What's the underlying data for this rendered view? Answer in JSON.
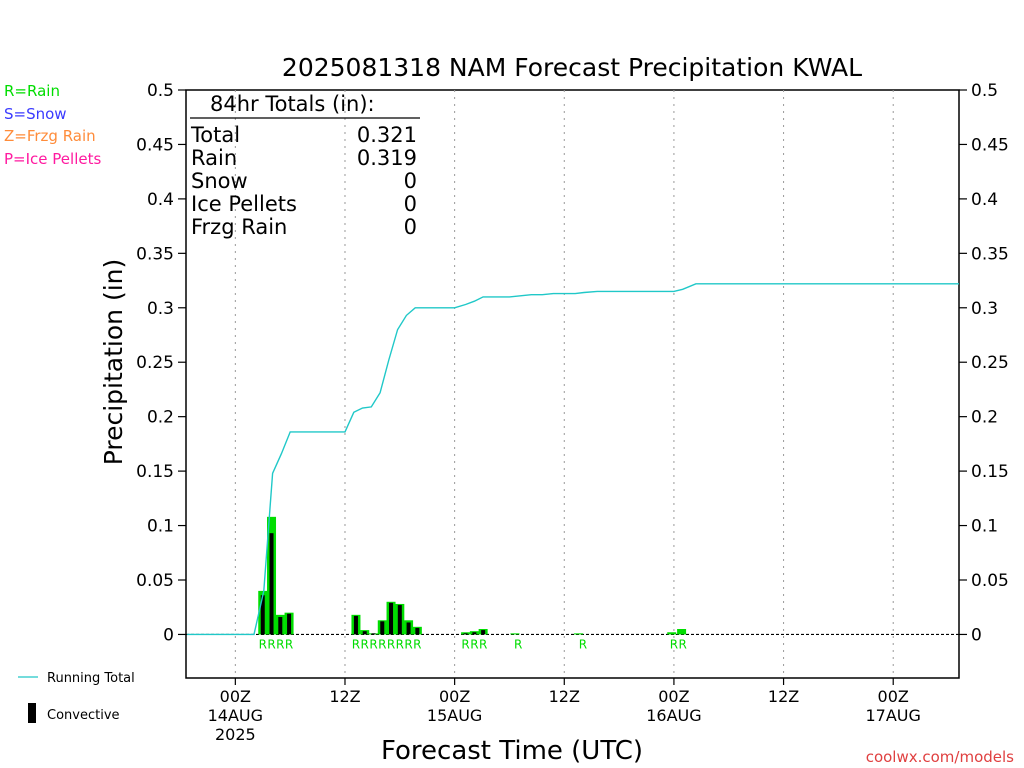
{
  "chart_data": {
    "type": "bar",
    "title": "2025081318 NAM Forecast Precipitation KWAL",
    "xlabel": "Forecast Time (UTC)",
    "ylabel": "Precipitation (in)",
    "ylim": [
      -0.04,
      0.5
    ],
    "xlim": [
      -4.5,
      66
    ],
    "y_ticks": [
      "0",
      "0.05",
      "0.1",
      "0.15",
      "0.2",
      "0.25",
      "0.3",
      "0.35",
      "0.4",
      "0.45",
      "0.5"
    ],
    "y_tick_values": [
      0,
      0.05,
      0.1,
      0.15,
      0.2,
      0.25,
      0.3,
      0.35,
      0.4,
      0.45,
      0.5
    ],
    "x_ticks": [
      {
        "hour": 0,
        "line1": "00Z",
        "line2": "14AUG",
        "line3": "2025"
      },
      {
        "hour": 10,
        "line1": "12Z",
        "line2": "",
        "line3": ""
      },
      {
        "hour": 20,
        "line1": "00Z",
        "line2": "15AUG",
        "line3": ""
      },
      {
        "hour": 30,
        "line1": "12Z",
        "line2": "",
        "line3": ""
      },
      {
        "hour": 40,
        "line1": "00Z",
        "line2": "16AUG",
        "line3": ""
      },
      {
        "hour": 50,
        "line1": "12Z",
        "line2": "",
        "line3": ""
      },
      {
        "hour": 60,
        "line1": "00Z",
        "line2": "17AUG",
        "line3": ""
      }
    ],
    "grid": true,
    "legend": "left",
    "totals_box": {
      "heading": "84hr Totals (in):",
      "rows": [
        {
          "label": "Total",
          "value": "0.321"
        },
        {
          "label": "Rain",
          "value": "0.319"
        },
        {
          "label": "Snow",
          "value": "0"
        },
        {
          "label": "Ice Pellets",
          "value": "0"
        },
        {
          "label": "Frzg Rain",
          "value": "0"
        }
      ]
    },
    "precip_legend": [
      {
        "label": "R=Rain",
        "color": "#00dd00"
      },
      {
        "label": "S=Snow",
        "color": "#3a3aff"
      },
      {
        "label": "Z=Frzg Rain",
        "color": "#ff8c3a"
      },
      {
        "label": "P=Ice Pellets",
        "color": "#ff1aa0"
      }
    ],
    "series_legend": [
      {
        "label": "Running Total",
        "kind": "line",
        "color": "#20c8c8"
      },
      {
        "label": "Convective",
        "kind": "bar",
        "color": "#000000"
      }
    ],
    "bars": [
      {
        "hour": 2.5,
        "total": 0.04,
        "convective": 0.036,
        "type": "R"
      },
      {
        "hour": 3.3,
        "total": 0.108,
        "convective": 0.093,
        "type": "R"
      },
      {
        "hour": 4.1,
        "total": 0.018,
        "convective": 0.016,
        "type": "R"
      },
      {
        "hour": 4.9,
        "total": 0.02,
        "convective": 0.019,
        "type": "R"
      },
      {
        "hour": 11.0,
        "total": 0.018,
        "convective": 0.017,
        "type": "R"
      },
      {
        "hour": 11.8,
        "total": 0.004,
        "convective": 0.003,
        "type": "R"
      },
      {
        "hour": 12.6,
        "total": 0.001,
        "convective": 0.001,
        "type": "R"
      },
      {
        "hour": 13.4,
        "total": 0.013,
        "convective": 0.012,
        "type": "R"
      },
      {
        "hour": 14.2,
        "total": 0.03,
        "convective": 0.029,
        "type": "R"
      },
      {
        "hour": 15.0,
        "total": 0.028,
        "convective": 0.027,
        "type": "R"
      },
      {
        "hour": 15.8,
        "total": 0.013,
        "convective": 0.011,
        "type": "R"
      },
      {
        "hour": 16.6,
        "total": 0.007,
        "convective": 0.006,
        "type": "R"
      },
      {
        "hour": 21.0,
        "total": 0.002,
        "convective": 0.001,
        "type": "R"
      },
      {
        "hour": 21.8,
        "total": 0.003,
        "convective": 0.002,
        "type": "R"
      },
      {
        "hour": 22.6,
        "total": 0.005,
        "convective": 0.004,
        "type": "R"
      },
      {
        "hour": 25.5,
        "total": 0.001,
        "convective": 0.0,
        "type": "R"
      },
      {
        "hour": 31.3,
        "total": 0.001,
        "convective": 0.0,
        "type": "R"
      },
      {
        "hour": 39.8,
        "total": 0.002,
        "convective": 0.0,
        "type": "R"
      },
      {
        "hour": 40.7,
        "total": 0.005,
        "convective": 0.0,
        "type": "R"
      }
    ],
    "type_labels": [
      {
        "hour": 2.5,
        "text": "R"
      },
      {
        "hour": 3.3,
        "text": "R"
      },
      {
        "hour": 4.1,
        "text": "R"
      },
      {
        "hour": 4.9,
        "text": "R"
      },
      {
        "hour": 11.0,
        "text": "R"
      },
      {
        "hour": 11.8,
        "text": "R"
      },
      {
        "hour": 12.6,
        "text": "R"
      },
      {
        "hour": 13.4,
        "text": "R"
      },
      {
        "hour": 14.2,
        "text": "R"
      },
      {
        "hour": 15.0,
        "text": "R"
      },
      {
        "hour": 15.8,
        "text": "R"
      },
      {
        "hour": 16.6,
        "text": "R"
      },
      {
        "hour": 21.0,
        "text": "R"
      },
      {
        "hour": 21.8,
        "text": "R"
      },
      {
        "hour": 22.6,
        "text": "R"
      },
      {
        "hour": 25.8,
        "text": "R"
      },
      {
        "hour": 31.7,
        "text": "R"
      },
      {
        "hour": 40.0,
        "text": "R"
      },
      {
        "hour": 40.8,
        "text": "R"
      }
    ],
    "running_total": {
      "name": "Running Total",
      "color": "#20c8c8",
      "x": [
        -4.4,
        1.7,
        2.6,
        3.4,
        4.2,
        5.0,
        6.0,
        7.0,
        8.0,
        9.0,
        10.0,
        10.8,
        11.6,
        12.4,
        13.2,
        14.0,
        14.8,
        15.6,
        16.4,
        17.2,
        18.0,
        19.0,
        20.0,
        21.0,
        21.8,
        22.6,
        23.4,
        24.2,
        25.0,
        26.0,
        27.0,
        28.0,
        29.0,
        30.0,
        31.0,
        31.8,
        33.0,
        35.0,
        37.0,
        39.0,
        40.0,
        40.8,
        42.0,
        46.0,
        50.0,
        55.0,
        60.0,
        66.0
      ],
      "y": [
        0,
        0,
        0.04,
        0.148,
        0.166,
        0.186,
        0.186,
        0.186,
        0.186,
        0.186,
        0.186,
        0.204,
        0.208,
        0.209,
        0.222,
        0.252,
        0.28,
        0.293,
        0.3,
        0.3,
        0.3,
        0.3,
        0.3,
        0.303,
        0.306,
        0.31,
        0.31,
        0.31,
        0.31,
        0.311,
        0.312,
        0.312,
        0.313,
        0.313,
        0.313,
        0.314,
        0.315,
        0.315,
        0.315,
        0.315,
        0.315,
        0.317,
        0.322,
        0.322,
        0.322,
        0.322,
        0.322,
        0.322
      ]
    },
    "colors": {
      "rain": "#00dd00",
      "convective": "#000000",
      "running_total": "#20c8c8"
    }
  },
  "credit": "coolwx.com/models"
}
